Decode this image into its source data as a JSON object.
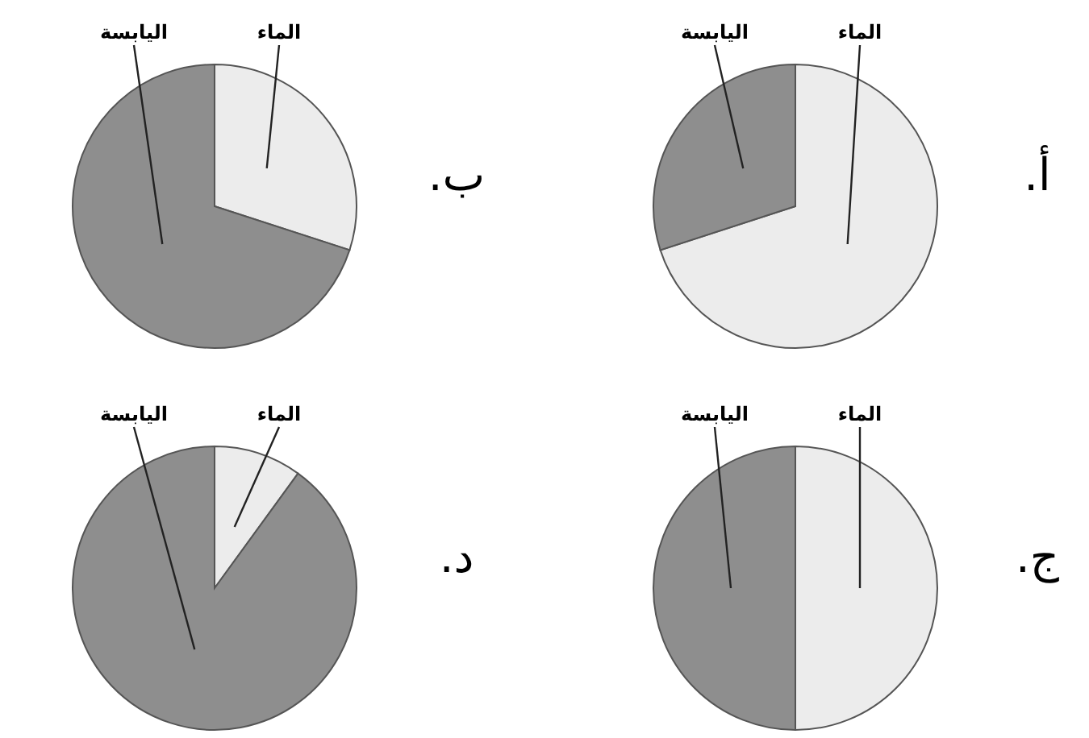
{
  "chart_data": [
    {
      "type": "pie",
      "title": "أ.",
      "categories": [
        "الماء",
        "اليابسة"
      ],
      "values": [
        70,
        30
      ],
      "colors": [
        "#ececec",
        "#8e8e8e"
      ]
    },
    {
      "type": "pie",
      "title": "ب.",
      "categories": [
        "الماء",
        "اليابسة"
      ],
      "values": [
        30,
        70
      ],
      "colors": [
        "#ececec",
        "#8e8e8e"
      ]
    },
    {
      "type": "pie",
      "title": "ج.",
      "categories": [
        "الماء",
        "اليابسة"
      ],
      "values": [
        50,
        50
      ],
      "colors": [
        "#ececec",
        "#8e8e8e"
      ]
    },
    {
      "type": "pie",
      "title": "د.",
      "categories": [
        "الماء",
        "اليابسة"
      ],
      "values": [
        10,
        90
      ],
      "colors": [
        "#ececec",
        "#8e8e8e"
      ]
    }
  ]
}
